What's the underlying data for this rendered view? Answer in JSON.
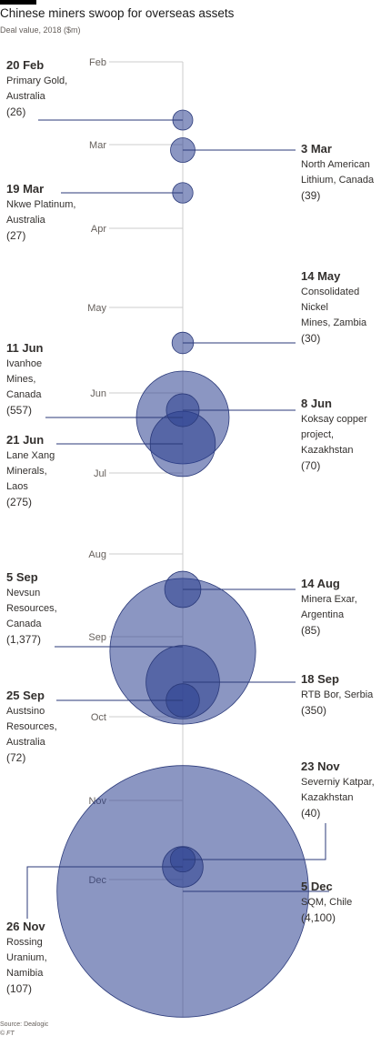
{
  "header": {
    "title": "Chinese miners swoop for overseas assets",
    "subtitle": "Deal value, 2018 ($m)"
  },
  "source": {
    "line1": "Source: Dealogic",
    "line2": "© FT"
  },
  "colors": {
    "bubble_fill": "#2b3f8f",
    "bubble_stroke": "#2b3a7a",
    "axis": "#cccccc",
    "leader": "#2b3a7a"
  },
  "chart_data": {
    "type": "bubble-timeline",
    "title": "Chinese miners swoop for overseas assets",
    "subtitle": "Deal value, 2018 ($m)",
    "months": [
      "Feb",
      "Mar",
      "Apr",
      "May",
      "Jun",
      "Jul",
      "Aug",
      "Sep",
      "Oct",
      "Nov",
      "Dec"
    ],
    "deals": [
      {
        "date": "20 Feb",
        "name": [
          "Primary Gold,",
          "Australia"
        ],
        "value": 26,
        "value_label": "(26)",
        "side": "left"
      },
      {
        "date": "3 Mar",
        "name": [
          "North American",
          "Lithium, Canada"
        ],
        "value": 39,
        "value_label": "(39)",
        "side": "right"
      },
      {
        "date": "19 Mar",
        "name": [
          "Nkwe Platinum,",
          "Australia"
        ],
        "value": 27,
        "value_label": "(27)",
        "side": "left"
      },
      {
        "date": "14 May",
        "name": [
          "Consolidated",
          "Nickel",
          "Mines, Zambia"
        ],
        "value": 30,
        "value_label": "(30)",
        "side": "right"
      },
      {
        "date": "11 Jun",
        "name": [
          "Ivanhoe",
          "Mines,",
          "Canada"
        ],
        "value": 557,
        "value_label": "(557)",
        "side": "left"
      },
      {
        "date": "8 Jun",
        "name": [
          "Koksay copper",
          "project,",
          "Kazakhstan"
        ],
        "value": 70,
        "value_label": "(70)",
        "side": "right"
      },
      {
        "date": "21 Jun",
        "name": [
          "Lane Xang",
          "Minerals,",
          "Laos"
        ],
        "value": 275,
        "value_label": "(275)",
        "side": "left"
      },
      {
        "date": "14 Aug",
        "name": [
          "Minera Exar,",
          "Argentina"
        ],
        "value": 85,
        "value_label": "(85)",
        "side": "right"
      },
      {
        "date": "5 Sep",
        "name": [
          "Nevsun",
          "Resources,",
          "Canada"
        ],
        "value": 1377,
        "value_label": "(1,377)",
        "side": "left"
      },
      {
        "date": "18 Sep",
        "name": [
          "RTB Bor, Serbia"
        ],
        "value": 350,
        "value_label": "(350)",
        "side": "right"
      },
      {
        "date": "25 Sep",
        "name": [
          "Austsino",
          "Resources,",
          "Australia"
        ],
        "value": 72,
        "value_label": "(72)",
        "side": "left"
      },
      {
        "date": "23 Nov",
        "name": [
          "Severniy Katpar,",
          "Kazakhstan"
        ],
        "value": 40,
        "value_label": "(40)",
        "side": "right"
      },
      {
        "date": "5 Dec",
        "name": [
          "SQM, Chile"
        ],
        "value": 4100,
        "value_label": "(4,100)",
        "side": "right"
      },
      {
        "date": "26 Nov",
        "name": [
          "Rossing",
          "Uranium,",
          "Namibia"
        ],
        "value": 107,
        "value_label": "(107)",
        "side": "left"
      }
    ]
  }
}
